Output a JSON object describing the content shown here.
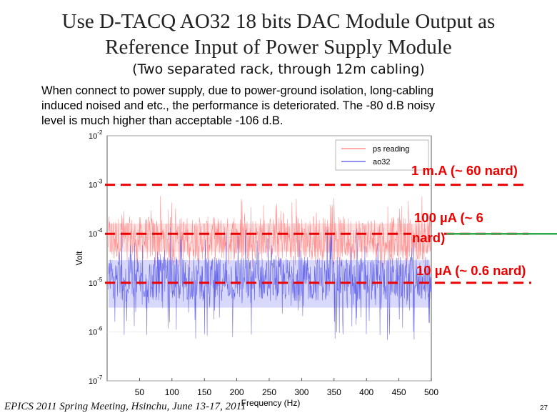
{
  "slide": {
    "title_line1": "Use D-TACQ AO32 18 bits DAC Module Output as",
    "title_line2": "Reference Input of Power Supply Module",
    "subtitle": "(Two separated rack, through 12m cabling)",
    "body_line1": "When connect to power supply, due to power-ground isolation, long-cabling",
    "body_line2": "induced noised and etc., the performance is deteriorated. The -80 d.B noisy",
    "body_line3": "level is much higher than acceptable -106 d.B.",
    "footer": "EPICS 2011 Spring Meeting, Hsinchu, June 13-17, 2011",
    "page_number": "27"
  },
  "annotations": {
    "line_1mA": "1 m.A (~ 60 nard)",
    "line_100uA_a": "100 µA (~ 6",
    "line_100uA_b": "nard)",
    "line_10uA": "10 µA (~ 0.6 nard)",
    "levels": [
      0.001,
      0.0001,
      1e-05
    ],
    "line_color": "#ee0000",
    "accent_line_color": "#2aa84a"
  },
  "chart_data": {
    "type": "line",
    "xlabel": "Frequency (Hz)",
    "ylabel": "Volt",
    "xlim": [
      0,
      500
    ],
    "ylim": [
      1e-07,
      0.01
    ],
    "y_scale": "log",
    "x_ticks": [
      50,
      100,
      150,
      200,
      250,
      300,
      350,
      400,
      450,
      500
    ],
    "y_ticks": [
      {
        "value": 0.01,
        "base": "10",
        "exp": "-2"
      },
      {
        "value": 0.001,
        "base": "10",
        "exp": "-3"
      },
      {
        "value": 0.0001,
        "base": "10",
        "exp": "-4"
      },
      {
        "value": 1e-05,
        "base": "10",
        "exp": "-5"
      },
      {
        "value": 1e-06,
        "base": "10",
        "exp": "-6"
      },
      {
        "value": 1e-07,
        "base": "10",
        "exp": "-7"
      }
    ],
    "legend_position": "top-right",
    "series": [
      {
        "name": "ps reading",
        "color": "#ff7b7b",
        "typical": 8e-05,
        "low": 2e-05,
        "high": 0.0006
      },
      {
        "name": "ao32",
        "color": "#4d4de6",
        "typical": 1.2e-05,
        "low": 6e-07,
        "high": 0.00015
      }
    ]
  }
}
